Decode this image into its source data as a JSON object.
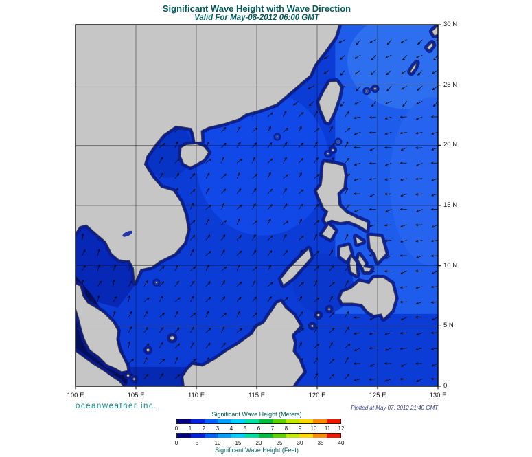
{
  "header": {
    "title": "Significant Wave Height with Wave Direction",
    "subtitle": "Valid For May-08-2012 06:00 GMT"
  },
  "footer": {
    "branding": "oceanweather inc.",
    "plotted_at": "Plotted at May 07, 2012 21:40 GMT"
  },
  "axes": {
    "x_ticks": [
      "100 E",
      "105 E",
      "110 E",
      "115 E",
      "120 E",
      "125 E",
      "130 E"
    ],
    "y_ticks": [
      "30 N",
      "25 N",
      "20 N",
      "15 N",
      "10 N",
      "5 N",
      "0"
    ]
  },
  "legend": {
    "meters_label": "Significant Wave Height (Meters)",
    "feet_label": "Significant Wave Height (Feet)",
    "meters_ticks": [
      "0",
      "1",
      "2",
      "3",
      "4",
      "5",
      "6",
      "7",
      "8",
      "9",
      "10",
      "11",
      "12"
    ],
    "feet_ticks": [
      "0",
      "5",
      "10",
      "15",
      "20",
      "25",
      "30",
      "35",
      "40"
    ],
    "colors": [
      "#000080",
      "#0020e0",
      "#0060ff",
      "#00a0ff",
      "#00d0ff",
      "#00e0a0",
      "#00c040",
      "#60d000",
      "#c0e800",
      "#ffd800",
      "#ff8c00",
      "#f01800"
    ]
  },
  "map": {
    "sea_base_color": "#0b3cd6",
    "land_color": "#c6c6c6",
    "coastal_low_wave_color": "#0c1c8e"
  }
}
